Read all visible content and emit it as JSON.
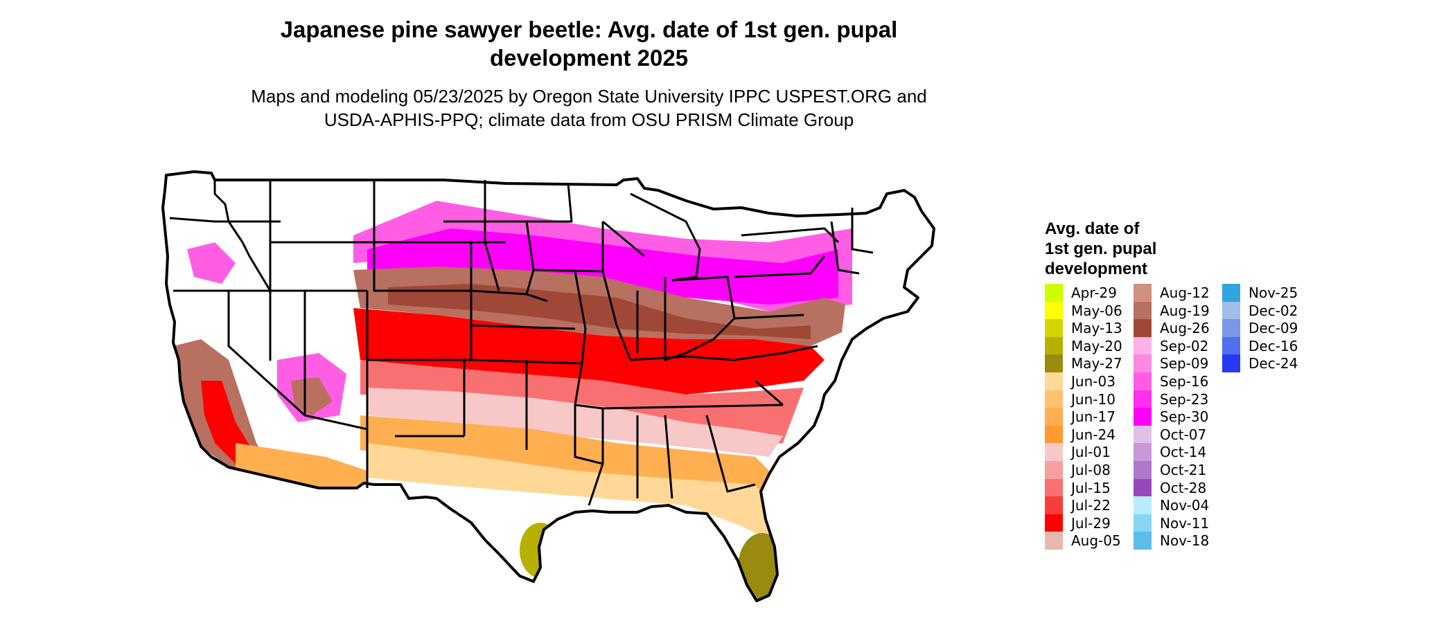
{
  "title_lines": [
    "Japanese pine sawyer beetle: Avg. date of 1st gen. pupal",
    "development 2025"
  ],
  "subtitle_lines": [
    "Maps and modeling 05/23/2025 by Oregon State University IPPC USPEST.ORG and",
    "USDA-APHIS-PPQ; climate data from OSU PRISM Climate Group"
  ],
  "legend": {
    "title_lines": [
      "Avg. date of",
      "1st gen. pupal",
      "development"
    ],
    "columns": [
      [
        {
          "label": "Apr-29",
          "color": "#ccff00"
        },
        {
          "label": "May-06",
          "color": "#ffff00"
        },
        {
          "label": "May-13",
          "color": "#d4d400"
        },
        {
          "label": "May-20",
          "color": "#b8b000"
        },
        {
          "label": "May-27",
          "color": "#9a8a10"
        },
        {
          "label": "Jun-03",
          "color": "#ffd898"
        },
        {
          "label": "Jun-10",
          "color": "#ffc270"
        },
        {
          "label": "Jun-17",
          "color": "#ffae50"
        },
        {
          "label": "Jun-24",
          "color": "#ff9a30"
        },
        {
          "label": "Jul-01",
          "color": "#f8c8c8"
        },
        {
          "label": "Jul-08",
          "color": "#f8a0a0"
        },
        {
          "label": "Jul-15",
          "color": "#f87070"
        },
        {
          "label": "Jul-22",
          "color": "#f83c3c"
        },
        {
          "label": "Jul-29",
          "color": "#ff0000"
        },
        {
          "label": "Aug-05",
          "color": "#e8b8b0"
        }
      ],
      [
        {
          "label": "Aug-12",
          "color": "#d09080"
        },
        {
          "label": "Aug-19",
          "color": "#b87060"
        },
        {
          "label": "Aug-26",
          "color": "#a04838"
        },
        {
          "label": "Sep-02",
          "color": "#ffb0e8"
        },
        {
          "label": "Sep-09",
          "color": "#ff88e4"
        },
        {
          "label": "Sep-16",
          "color": "#ff5ee4"
        },
        {
          "label": "Sep-23",
          "color": "#ff30ee"
        },
        {
          "label": "Sep-30",
          "color": "#ff00ff"
        },
        {
          "label": "Oct-07",
          "color": "#e0c0e8"
        },
        {
          "label": "Oct-14",
          "color": "#c898d8"
        },
        {
          "label": "Oct-21",
          "color": "#b078cc"
        },
        {
          "label": "Oct-28",
          "color": "#9848b8"
        },
        {
          "label": "Nov-04",
          "color": "#b8ecff"
        },
        {
          "label": "Nov-11",
          "color": "#88d4f4"
        },
        {
          "label": "Nov-18",
          "color": "#5cbcec"
        }
      ],
      [
        {
          "label": "Nov-25",
          "color": "#30a4dc"
        },
        {
          "label": "Dec-02",
          "color": "#a0bce8"
        },
        {
          "label": "Dec-09",
          "color": "#7a98e8"
        },
        {
          "label": "Dec-16",
          "color": "#5070f0"
        },
        {
          "label": "Dec-24",
          "color": "#2838f4"
        }
      ]
    ]
  }
}
